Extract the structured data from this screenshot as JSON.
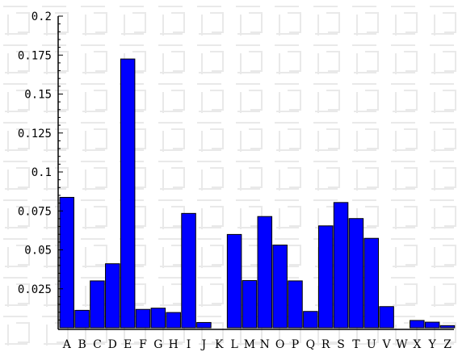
{
  "colors": {
    "bar_fill": "#0000ff",
    "bar_stroke": "#000000",
    "axis": "#000000",
    "background": "#ffffff",
    "watermark": "#e9e9e9"
  },
  "chart_data": {
    "type": "bar",
    "title": "",
    "xlabel": "",
    "ylabel": "",
    "ylim": [
      0,
      0.2
    ],
    "yticks": [
      "0.025",
      "0.05",
      "0.075",
      "0.1",
      "0.125",
      "0.15",
      "0.175",
      "0.2"
    ],
    "grid": false,
    "legend": "none",
    "categories": [
      "A",
      "B",
      "C",
      "D",
      "E",
      "F",
      "G",
      "H",
      "I",
      "J",
      "K",
      "L",
      "M",
      "N",
      "O",
      "P",
      "Q",
      "R",
      "S",
      "T",
      "U",
      "V",
      "W",
      "X",
      "Y",
      "Z"
    ],
    "values": [
      0.0837,
      0.0112,
      0.0301,
      0.0411,
      0.1725,
      0.0118,
      0.0126,
      0.0098,
      0.0734,
      0.0034,
      0.0,
      0.0599,
      0.0303,
      0.0714,
      0.0531,
      0.0301,
      0.0105,
      0.0654,
      0.0804,
      0.0701,
      0.0574,
      0.0136,
      0.0,
      0.0047,
      0.0036,
      0.0014
    ]
  }
}
